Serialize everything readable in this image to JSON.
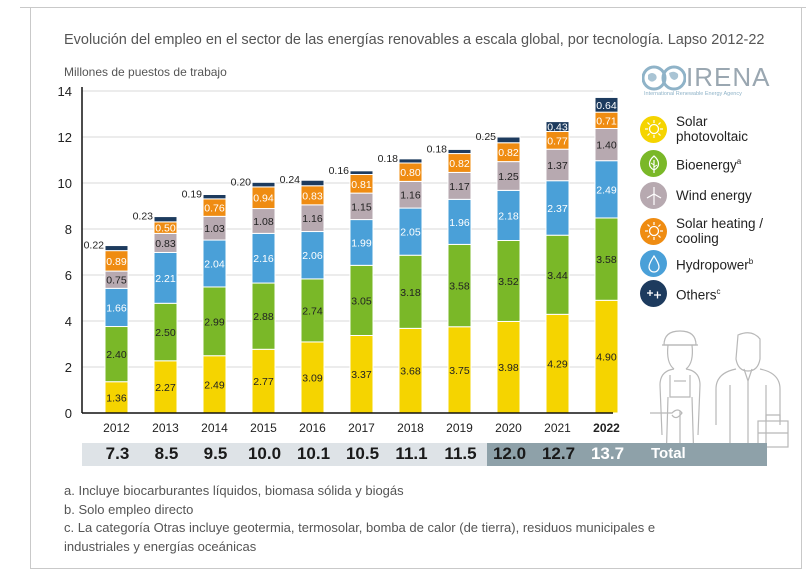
{
  "chart_data": {
    "type": "bar",
    "stacked": true,
    "title": "Evolución del empleo en el sector de las energías renovables a escala global, por tecnología. Lapso 2012-22",
    "ylabel": "Millones de puestos de trabajo",
    "xlabel": "",
    "ylim": [
      0,
      14
    ],
    "yticks": [
      0,
      2,
      4,
      6,
      8,
      10,
      12,
      14
    ],
    "grid": true,
    "legend_position": "right",
    "categories": [
      "2012",
      "2013",
      "2014",
      "2015",
      "2016",
      "2017",
      "2018",
      "2019",
      "2020",
      "2021",
      "2022"
    ],
    "highlight_category": "2022",
    "series": [
      {
        "name": "Solar photovoltaic",
        "color": "#f5d400",
        "label_color": "#222222",
        "values": [
          1.36,
          2.27,
          2.49,
          2.77,
          3.09,
          3.37,
          3.68,
          3.75,
          3.98,
          4.29,
          4.9
        ]
      },
      {
        "name": "Bioenergy",
        "color": "#7ab828",
        "label_color": "#222222",
        "values": [
          2.4,
          2.5,
          2.99,
          2.88,
          2.74,
          3.05,
          3.18,
          3.58,
          3.52,
          3.44,
          3.58
        ]
      },
      {
        "name": "Hydropower",
        "color": "#4aa0d8",
        "label_color": "#ffffff",
        "values": [
          1.66,
          2.21,
          2.04,
          2.16,
          2.06,
          1.99,
          2.05,
          1.96,
          2.18,
          2.37,
          2.49
        ]
      },
      {
        "name": "Wind energy",
        "color": "#b7a9b0",
        "label_color": "#222222",
        "values": [
          0.75,
          0.83,
          1.03,
          1.08,
          1.16,
          1.15,
          1.16,
          1.17,
          1.25,
          1.37,
          1.4
        ]
      },
      {
        "name": "Solar heating / cooling",
        "color": "#ef8c12",
        "label_color": "#ffffff",
        "values": [
          0.89,
          0.5,
          0.76,
          0.94,
          0.83,
          0.81,
          0.8,
          0.82,
          0.82,
          0.77,
          0.71
        ]
      },
      {
        "name": "Others",
        "color": "#1d3b5e",
        "label_color": "#ffffff",
        "values": [
          0.22,
          0.23,
          0.19,
          0.2,
          0.24,
          0.16,
          0.18,
          0.18,
          0.25,
          0.43,
          0.64
        ],
        "label_outside_until_index": 8
      }
    ],
    "totals": [
      "7.3",
      "8.5",
      "9.5",
      "10.0",
      "10.1",
      "10.5",
      "11.1",
      "11.5",
      "12.0",
      "12.7",
      "13.7"
    ],
    "totals_label": "Total"
  },
  "logo": {
    "name": "IRENA",
    "subtitle": "International Renewable Energy Agency"
  },
  "legend": [
    {
      "icon": "sun-icon",
      "line1": "Solar",
      "line2": "photovoltaic",
      "sup": "",
      "color": "#f5d400"
    },
    {
      "icon": "leaf-icon",
      "line1": "Bioenergy",
      "line2": "",
      "sup": "a",
      "color": "#7ab828"
    },
    {
      "icon": "wind-turbine-icon",
      "line1": "Wind energy",
      "line2": "",
      "sup": "",
      "color": "#b7a9b0"
    },
    {
      "icon": "sun-heat-icon",
      "line1": "Solar heating /",
      "line2": "cooling",
      "sup": "",
      "color": "#ef8c12"
    },
    {
      "icon": "water-drop-icon",
      "line1": "Hydropower",
      "line2": "",
      "sup": "b",
      "color": "#4aa0d8"
    },
    {
      "icon": "plus-plus-icon",
      "line1": "Others",
      "line2": "",
      "sup": "c",
      "color": "#1d3b5e"
    }
  ],
  "notes": [
    "a. Incluye biocarburantes líquidos, biomasa sólida y biogás",
    "b. Solo empleo directo",
    "c. La categoría Otras incluye geotermia, termosolar, bomba de calor (de tierra), residuos municipales e",
    "industriales y energías oceánicas"
  ]
}
